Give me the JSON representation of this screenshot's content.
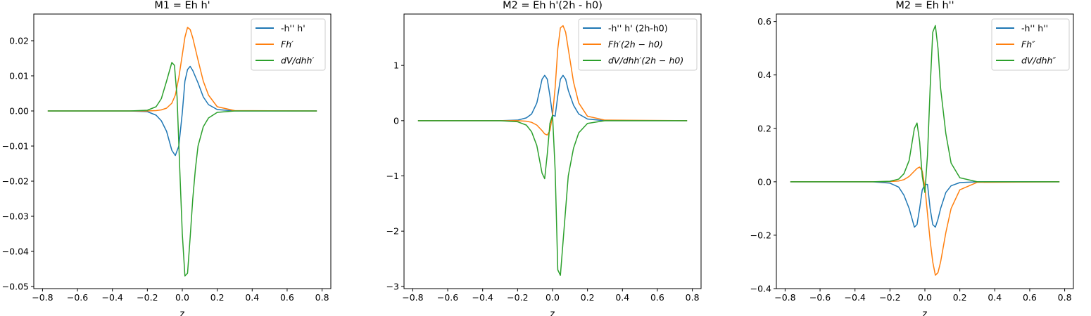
{
  "chart_data": [
    {
      "type": "line",
      "title": "M1 = Eh h'",
      "xlabel": "z",
      "ylabel": "",
      "xlim": [
        -0.85,
        0.85
      ],
      "ylim": [
        -0.0506,
        0.0276
      ],
      "xticks": [
        -0.8,
        -0.6,
        -0.4,
        -0.2,
        0.0,
        0.2,
        0.4,
        0.6,
        0.8
      ],
      "xtick_labels": [
        "−0.8",
        "−0.6",
        "−0.4",
        "−0.2",
        "0.0",
        "0.2",
        "0.4",
        "0.6",
        "0.8"
      ],
      "yticks": [
        0.02,
        0.01,
        0.0,
        -0.01,
        -0.02,
        -0.03,
        -0.04,
        -0.05
      ],
      "ytick_labels": [
        "0.02",
        "0.01",
        "0.00",
        "−0.01",
        "−0.02",
        "−0.03",
        "−0.04",
        "−0.05"
      ],
      "grid": false,
      "legend": {
        "placement": "upper-right",
        "entries": [
          "-h'' h'",
          "Fh′",
          "dV/dhh′"
        ]
      },
      "series": [
        {
          "name": "-h'' h'",
          "color": "#1f77b4",
          "x": [
            -0.77,
            -0.3,
            -0.2,
            -0.15,
            -0.12,
            -0.09,
            -0.06,
            -0.04,
            -0.02,
            0.0,
            0.015,
            0.03,
            0.045,
            0.06,
            0.09,
            0.12,
            0.15,
            0.2,
            0.3,
            0.77
          ],
          "y": [
            0.0,
            0.0,
            -0.0002,
            -0.0012,
            -0.0028,
            -0.0058,
            -0.0112,
            -0.0127,
            -0.01,
            -0.0005,
            0.0085,
            0.0118,
            0.0127,
            0.0115,
            0.008,
            0.004,
            0.0018,
            0.0004,
            0.0,
            0.0
          ]
        },
        {
          "name": "Fh′",
          "color": "#ff7f0e",
          "x": [
            -0.77,
            -0.3,
            -0.2,
            -0.15,
            -0.12,
            -0.09,
            -0.06,
            -0.04,
            -0.02,
            0.0,
            0.015,
            0.03,
            0.045,
            0.06,
            0.09,
            0.12,
            0.15,
            0.2,
            0.3,
            0.77
          ],
          "y": [
            0.0,
            0.0,
            0.0,
            0.0001,
            0.0003,
            0.0008,
            0.0022,
            0.0045,
            0.0095,
            0.016,
            0.021,
            0.0238,
            0.0232,
            0.0208,
            0.0145,
            0.0085,
            0.0045,
            0.0012,
            0.0001,
            0.0
          ]
        },
        {
          "name": "dV/dhh′",
          "color": "#2ca02c",
          "x": [
            -0.77,
            -0.3,
            -0.2,
            -0.15,
            -0.12,
            -0.09,
            -0.06,
            -0.045,
            -0.03,
            -0.015,
            0.0,
            0.015,
            0.03,
            0.045,
            0.06,
            0.075,
            0.09,
            0.12,
            0.15,
            0.2,
            0.3,
            0.77
          ],
          "y": [
            0.0,
            0.0,
            0.0002,
            0.0012,
            0.0035,
            0.0085,
            0.0138,
            0.013,
            0.004,
            -0.016,
            -0.035,
            -0.047,
            -0.0462,
            -0.036,
            -0.025,
            -0.0165,
            -0.01,
            -0.0045,
            -0.002,
            -0.0004,
            0.0,
            0.0
          ]
        }
      ]
    },
    {
      "type": "line",
      "title": "M2 = Eh h'(2h - h0)",
      "xlabel": "z",
      "ylabel": "",
      "xlim": [
        -0.85,
        0.85
      ],
      "ylim": [
        -3.04,
        1.93
      ],
      "xticks": [
        -0.8,
        -0.6,
        -0.4,
        -0.2,
        0.0,
        0.2,
        0.4,
        0.6,
        0.8
      ],
      "xtick_labels": [
        "−0.8",
        "−0.6",
        "−0.4",
        "−0.2",
        "0.0",
        "0.2",
        "0.4",
        "0.6",
        "0.8"
      ],
      "yticks": [
        1,
        0,
        -1,
        -2,
        -3
      ],
      "ytick_labels": [
        "1",
        "0",
        "−1",
        "−2",
        "−3"
      ],
      "grid": false,
      "legend": {
        "placement": "upper-right",
        "entries": [
          "-h'' h' (2h-h0)",
          "Fh′(2h − h0)",
          "dV/dhh′(2h − h0)"
        ]
      },
      "series": [
        {
          "name": "-h'' h' (2h-h0)",
          "color": "#1f77b4",
          "x": [
            -0.77,
            -0.3,
            -0.2,
            -0.15,
            -0.12,
            -0.09,
            -0.06,
            -0.045,
            -0.03,
            -0.015,
            0.0,
            0.015,
            0.03,
            0.045,
            0.06,
            0.075,
            0.09,
            0.12,
            0.15,
            0.2,
            0.3,
            0.77
          ],
          "y": [
            0.0,
            0.0,
            0.01,
            0.05,
            0.12,
            0.32,
            0.75,
            0.82,
            0.75,
            0.45,
            0.1,
            0.08,
            0.45,
            0.75,
            0.82,
            0.75,
            0.55,
            0.28,
            0.12,
            0.03,
            0.0,
            0.0
          ]
        },
        {
          "name": "Fh′(2h − h0)",
          "color": "#ff7f0e",
          "x": [
            -0.77,
            -0.3,
            -0.2,
            -0.15,
            -0.12,
            -0.09,
            -0.06,
            -0.045,
            -0.03,
            -0.015,
            0.0,
            0.015,
            0.03,
            0.045,
            0.06,
            0.075,
            0.09,
            0.12,
            0.15,
            0.2,
            0.3,
            0.77
          ],
          "y": [
            0.0,
            0.0,
            0.0,
            -0.01,
            -0.03,
            -0.08,
            -0.18,
            -0.24,
            -0.26,
            -0.18,
            0.1,
            0.6,
            1.3,
            1.68,
            1.72,
            1.6,
            1.3,
            0.7,
            0.32,
            0.08,
            0.01,
            0.0
          ]
        },
        {
          "name": "dV/dhh′(2h − h0)",
          "color": "#2ca02c",
          "x": [
            -0.77,
            -0.3,
            -0.2,
            -0.15,
            -0.12,
            -0.09,
            -0.06,
            -0.045,
            -0.03,
            -0.015,
            0.0,
            0.015,
            0.03,
            0.045,
            0.06,
            0.075,
            0.09,
            0.12,
            0.15,
            0.2,
            0.3,
            0.77
          ],
          "y": [
            0.0,
            0.0,
            -0.02,
            -0.08,
            -0.2,
            -0.45,
            -0.95,
            -1.05,
            -0.6,
            -0.05,
            0.1,
            -0.9,
            -2.7,
            -2.8,
            -2.2,
            -1.6,
            -1.0,
            -0.5,
            -0.22,
            -0.05,
            0.0,
            0.0
          ]
        }
      ]
    },
    {
      "type": "line",
      "title": "M2 = Eh h''",
      "xlabel": "z",
      "ylabel": "",
      "xlim": [
        -0.85,
        0.85
      ],
      "ylim": [
        -0.4,
        0.628
      ],
      "xticks": [
        -0.8,
        -0.6,
        -0.4,
        -0.2,
        0.0,
        0.2,
        0.4,
        0.6,
        0.8
      ],
      "xtick_labels": [
        "−0.8",
        "−0.6",
        "−0.4",
        "−0.2",
        "0.0",
        "0.2",
        "0.4",
        "0.6",
        "0.8"
      ],
      "yticks": [
        0.6,
        0.4,
        0.2,
        0.0,
        -0.2,
        -0.4
      ],
      "ytick_labels": [
        "0.6",
        "0.4",
        "0.2",
        "0.0",
        "−0.2",
        "−0.4"
      ],
      "grid": false,
      "legend": {
        "placement": "upper-right",
        "entries": [
          "-h'' h''",
          "Fh″",
          "dV/dhh″"
        ]
      },
      "series": [
        {
          "name": "-h'' h''",
          "color": "#1f77b4",
          "x": [
            -0.77,
            -0.3,
            -0.2,
            -0.15,
            -0.12,
            -0.09,
            -0.06,
            -0.045,
            -0.03,
            -0.015,
            0.0,
            0.015,
            0.03,
            0.045,
            0.06,
            0.075,
            0.09,
            0.12,
            0.15,
            0.2,
            0.3,
            0.77
          ],
          "y": [
            0.0,
            0.0,
            -0.005,
            -0.02,
            -0.05,
            -0.1,
            -0.17,
            -0.16,
            -0.1,
            -0.03,
            -0.01,
            -0.01,
            -0.1,
            -0.16,
            -0.17,
            -0.14,
            -0.1,
            -0.04,
            -0.015,
            -0.003,
            0.0,
            0.0
          ]
        },
        {
          "name": "Fh″",
          "color": "#ff7f0e",
          "x": [
            -0.77,
            -0.3,
            -0.2,
            -0.15,
            -0.12,
            -0.09,
            -0.06,
            -0.045,
            -0.03,
            -0.015,
            0.0,
            0.015,
            0.03,
            0.045,
            0.06,
            0.075,
            0.09,
            0.12,
            0.15,
            0.2,
            0.3,
            0.77
          ],
          "y": [
            0.0,
            0.0,
            0.001,
            0.003,
            0.008,
            0.02,
            0.04,
            0.05,
            0.055,
            0.04,
            -0.02,
            -0.12,
            -0.22,
            -0.3,
            -0.35,
            -0.34,
            -0.3,
            -0.19,
            -0.1,
            -0.03,
            -0.002,
            0.0
          ]
        },
        {
          "name": "dV/dhh″",
          "color": "#2ca02c",
          "x": [
            -0.77,
            -0.3,
            -0.2,
            -0.15,
            -0.12,
            -0.09,
            -0.06,
            -0.045,
            -0.03,
            -0.015,
            0.0,
            0.015,
            0.03,
            0.045,
            0.06,
            0.075,
            0.09,
            0.12,
            0.15,
            0.2,
            0.3,
            0.77
          ],
          "y": [
            0.0,
            0.0,
            0.002,
            0.01,
            0.03,
            0.08,
            0.2,
            0.22,
            0.15,
            0.02,
            -0.04,
            0.1,
            0.35,
            0.56,
            0.585,
            0.5,
            0.35,
            0.18,
            0.07,
            0.015,
            0.0,
            0.0
          ]
        }
      ]
    }
  ]
}
